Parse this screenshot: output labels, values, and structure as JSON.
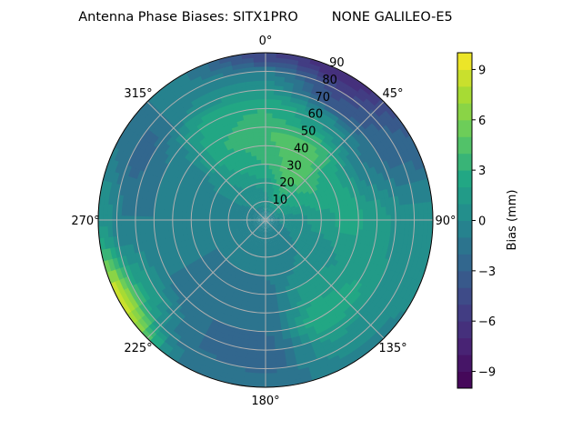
{
  "chart_data": {
    "type": "heatmap",
    "subtype": "polar-filled-contour",
    "title": "Antenna Phase Biases: SITX1PRO        NONE GALILEO-E5",
    "colorbar": {
      "label": "Bias (mm)",
      "range": [
        -10,
        10
      ],
      "levels_step": 1,
      "ticks": [
        -9,
        -6,
        -3,
        0,
        3,
        6,
        9
      ],
      "tick_labels": [
        "−9",
        "−6",
        "−3",
        "0",
        "3",
        "6",
        "9"
      ],
      "colormap": "viridis"
    },
    "angular_axis": {
      "direction": "clockwise",
      "zero_location": "top",
      "ticks": [
        0,
        45,
        90,
        135,
        180,
        225,
        270,
        315
      ],
      "tick_labels": [
        "0°",
        "45°",
        "90°",
        "135°",
        "180°",
        "225°",
        "270°",
        "315°"
      ]
    },
    "radial_axis": {
      "range": [
        0,
        90
      ],
      "ticks": [
        10,
        20,
        30,
        40,
        50,
        60,
        70,
        80,
        90
      ],
      "tick_labels": [
        "10",
        "20",
        "30",
        "40",
        "50",
        "60",
        "70",
        "80",
        "90"
      ],
      "label_angle": 22.5
    },
    "grid": true,
    "azimuths": [
      0,
      30,
      60,
      90,
      120,
      150,
      180,
      210,
      240,
      270,
      300,
      330
    ],
    "zeniths": [
      0,
      15,
      30,
      45,
      60,
      75,
      90
    ],
    "values_mm": [
      [
        -0.5,
        -0.5,
        -0.5,
        -0.5,
        -0.5,
        -0.5,
        -0.5,
        -0.5,
        -0.5,
        -0.5,
        -0.5,
        -0.5
      ],
      [
        1,
        3,
        2,
        0.5,
        0,
        -0.5,
        -0.5,
        -0.5,
        -0.5,
        0,
        0,
        0.5
      ],
      [
        3,
        5,
        3,
        1.5,
        0.5,
        0,
        -1,
        -1,
        -1,
        -1,
        0,
        2
      ],
      [
        4,
        4.5,
        2,
        2.5,
        1,
        1.5,
        -1.5,
        -1.5,
        -1,
        -1,
        -0.5,
        3
      ],
      [
        3,
        1,
        -1,
        1.5,
        2,
        3,
        -2,
        -2,
        -1,
        -1,
        -1,
        2.5
      ],
      [
        0,
        -4,
        -2.5,
        0.5,
        0.5,
        1,
        -2.5,
        -2,
        2,
        -1,
        -2.5,
        0
      ],
      [
        -5,
        -7,
        -3,
        0.5,
        0,
        -0.5,
        -1.5,
        -1,
        9,
        1,
        -1,
        -1
      ]
    ]
  }
}
